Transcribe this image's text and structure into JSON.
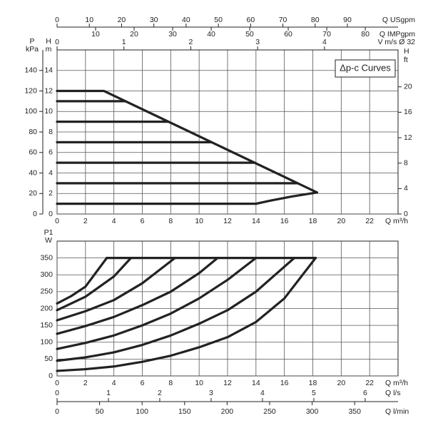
{
  "chart_data": [
    {
      "type": "line",
      "annotation": "Δp-c Curves",
      "x_label": "Q m³/h",
      "y_label": [
        "H",
        "m"
      ],
      "xlim": [
        0,
        24
      ],
      "xticks": [
        0,
        2,
        4,
        6,
        8,
        10,
        12,
        14,
        16,
        18,
        20,
        22
      ],
      "ylim": [
        0,
        16
      ],
      "yticks": [
        0,
        2,
        4,
        6,
        8,
        10,
        12,
        14
      ],
      "grid": true,
      "extra_axes": [
        {
          "side": "left",
          "label": [
            "P",
            "kPa"
          ],
          "lim": [
            0,
            160
          ],
          "ticks": [
            0,
            20,
            40,
            60,
            80,
            100,
            120,
            140
          ]
        },
        {
          "side": "right",
          "label": [
            "H",
            "ft"
          ],
          "lim": [
            0,
            25.8
          ],
          "ticks": [
            0,
            4,
            8,
            12,
            16,
            20
          ]
        },
        {
          "side": "top",
          "label": "Q USgpm",
          "lim": [
            0,
            105.7
          ],
          "ticks": [
            0,
            10,
            20,
            30,
            40,
            50,
            60,
            70,
            80,
            90
          ]
        },
        {
          "side": "top",
          "label": "Q IMPgpm",
          "lim": [
            0,
            88.5
          ],
          "ticks": [
            10,
            20,
            30,
            40,
            50,
            60,
            70,
            80
          ]
        },
        {
          "side": "top",
          "label": "V m/s Ø 32",
          "lim": [
            0,
            5.1
          ],
          "ticks": [
            0,
            1,
            2,
            3,
            4
          ]
        }
      ],
      "series": [
        {
          "color": "#222222",
          "x": [
            0,
            3.3,
            18.3
          ],
          "values": [
            12,
            12,
            2.1
          ]
        },
        {
          "color": "#222222",
          "x": [
            0,
            4.8
          ],
          "values": [
            11,
            11
          ]
        },
        {
          "color": "#222222",
          "x": [
            0,
            7.8
          ],
          "values": [
            9,
            9
          ]
        },
        {
          "color": "#222222",
          "x": [
            0,
            10.8
          ],
          "values": [
            7,
            7
          ]
        },
        {
          "color": "#222222",
          "x": [
            0,
            13.9
          ],
          "values": [
            5,
            5
          ]
        },
        {
          "color": "#222222",
          "x": [
            0,
            16.9
          ],
          "values": [
            3,
            3
          ]
        },
        {
          "color": "#222222",
          "x": [
            0,
            14,
            15,
            16.5,
            18.3
          ],
          "values": [
            1,
            1,
            1.3,
            1.7,
            2.1
          ]
        }
      ]
    },
    {
      "type": "line",
      "x_label": "Q m³/h",
      "y_label": [
        "P1",
        "W"
      ],
      "xlim": [
        0,
        24
      ],
      "xticks": [
        0,
        2,
        4,
        6,
        8,
        10,
        12,
        14,
        16,
        18,
        20,
        22
      ],
      "ylim": [
        0,
        400
      ],
      "yticks": [
        0,
        50,
        100,
        150,
        200,
        250,
        300,
        350
      ],
      "grid": true,
      "extra_axes": [
        {
          "side": "bottom",
          "label": "Q l/s",
          "lim": [
            0,
            6.64
          ],
          "ticks": [
            0,
            1,
            2,
            3,
            4,
            5,
            6
          ]
        },
        {
          "side": "bottom",
          "label": "Q l/min",
          "lim": [
            0,
            401
          ],
          "ticks": [
            0,
            50,
            100,
            150,
            200,
            250,
            300,
            350
          ]
        }
      ],
      "series": [
        {
          "color": "#222222",
          "x": [
            0,
            2,
            4,
            6,
            8,
            10,
            12,
            14,
            16,
            18.2
          ],
          "values": [
            15,
            20,
            28,
            42,
            60,
            85,
            115,
            160,
            230,
            350
          ]
        },
        {
          "color": "#222222",
          "x": [
            0,
            2,
            4,
            6,
            8,
            10,
            12,
            14,
            16.7
          ],
          "values": [
            45,
            55,
            70,
            92,
            120,
            155,
            195,
            250,
            350
          ]
        },
        {
          "color": "#222222",
          "x": [
            0,
            2,
            4,
            6,
            8,
            10,
            12,
            14
          ],
          "values": [
            80,
            98,
            120,
            150,
            185,
            230,
            285,
            350
          ]
        },
        {
          "color": "#222222",
          "x": [
            0,
            2,
            4,
            6,
            8,
            10,
            11.3
          ],
          "values": [
            125,
            148,
            175,
            210,
            250,
            305,
            350
          ]
        },
        {
          "color": "#222222",
          "x": [
            0,
            2,
            4,
            6,
            8.3
          ],
          "values": [
            165,
            192,
            225,
            275,
            350
          ]
        },
        {
          "color": "#222222",
          "x": [
            0,
            2,
            4,
            5.2
          ],
          "values": [
            195,
            235,
            295,
            350
          ]
        },
        {
          "color": "#222222",
          "x": [
            0,
            1,
            2,
            3.5
          ],
          "values": [
            215,
            237,
            265,
            350
          ]
        },
        {
          "color": "#222222",
          "x": [
            3.5,
            18.2
          ],
          "values": [
            350,
            350
          ]
        }
      ]
    }
  ]
}
